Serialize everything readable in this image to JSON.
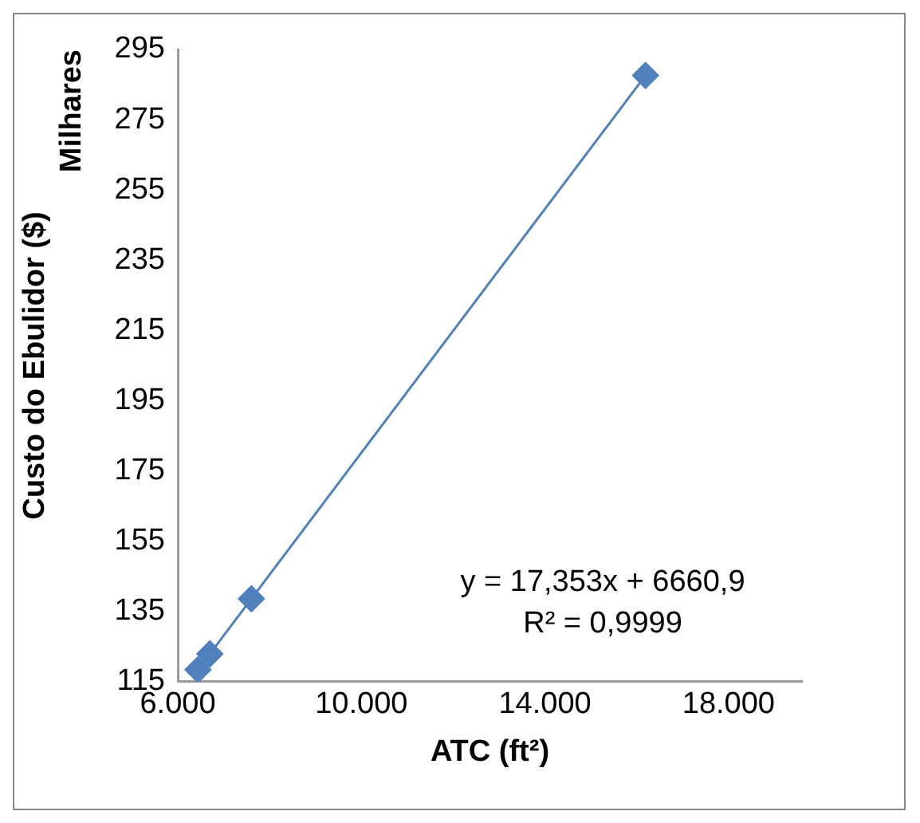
{
  "chart_data": {
    "type": "scatter",
    "xlabel": "ATC (ft²)",
    "ylabel": "Custo do Ebulidor ($)",
    "annotations": [
      "Milhares",
      "y = 17,353x + 6660,9",
      "R² = 0,9999"
    ],
    "series": [
      {
        "name": null,
        "type": "scatter",
        "color": "#4f81bd",
        "marker": "diamond",
        "x": [
          6440,
          6698,
          7603,
          16190
        ],
        "values": [
          118.4,
          122.9,
          138.6,
          287.6
        ]
      },
      {
        "name": null,
        "type": "line",
        "color": "#4f81bd",
        "marker": "none",
        "x": [
          6440,
          16190
        ],
        "values": [
          118.4,
          287.6
        ]
      }
    ],
    "xlim": [
      6000,
      19600
    ],
    "xticks": [
      {
        "value": 6000,
        "label": "6.000"
      },
      {
        "value": 10000,
        "label": "10.000"
      },
      {
        "value": 14000,
        "label": "14.000"
      },
      {
        "value": 18000,
        "label": "18.000"
      }
    ],
    "ylim": [
      115,
      295
    ],
    "yticks": [
      115,
      135,
      155,
      175,
      195,
      215,
      235,
      255,
      275,
      295
    ],
    "grid": false,
    "legend": false
  }
}
